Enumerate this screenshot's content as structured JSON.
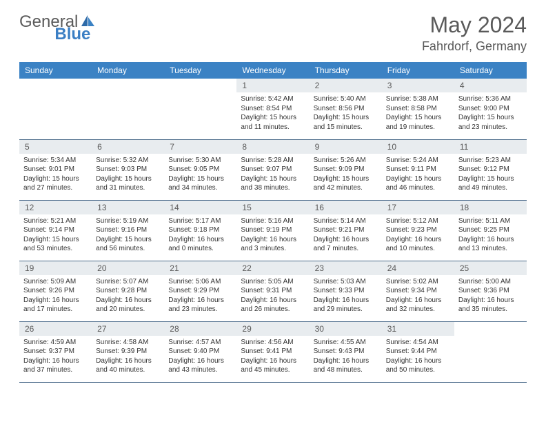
{
  "brand": {
    "part1": "General",
    "part2": "Blue"
  },
  "title": "May 2024",
  "location": "Fahrdorf, Germany",
  "colors": {
    "header_bg": "#3b82c4",
    "header_text": "#ffffff",
    "daynum_bg": "#e8ecef",
    "border": "#4a6a8a",
    "text": "#333333",
    "title_text": "#5a5a5a"
  },
  "weekdays": [
    "Sunday",
    "Monday",
    "Tuesday",
    "Wednesday",
    "Thursday",
    "Friday",
    "Saturday"
  ],
  "weeks": [
    [
      null,
      null,
      null,
      {
        "n": "1",
        "sr": "5:42 AM",
        "ss": "8:54 PM",
        "dl": "15 hours and 11 minutes."
      },
      {
        "n": "2",
        "sr": "5:40 AM",
        "ss": "8:56 PM",
        "dl": "15 hours and 15 minutes."
      },
      {
        "n": "3",
        "sr": "5:38 AM",
        "ss": "8:58 PM",
        "dl": "15 hours and 19 minutes."
      },
      {
        "n": "4",
        "sr": "5:36 AM",
        "ss": "9:00 PM",
        "dl": "15 hours and 23 minutes."
      }
    ],
    [
      {
        "n": "5",
        "sr": "5:34 AM",
        "ss": "9:01 PM",
        "dl": "15 hours and 27 minutes."
      },
      {
        "n": "6",
        "sr": "5:32 AM",
        "ss": "9:03 PM",
        "dl": "15 hours and 31 minutes."
      },
      {
        "n": "7",
        "sr": "5:30 AM",
        "ss": "9:05 PM",
        "dl": "15 hours and 34 minutes."
      },
      {
        "n": "8",
        "sr": "5:28 AM",
        "ss": "9:07 PM",
        "dl": "15 hours and 38 minutes."
      },
      {
        "n": "9",
        "sr": "5:26 AM",
        "ss": "9:09 PM",
        "dl": "15 hours and 42 minutes."
      },
      {
        "n": "10",
        "sr": "5:24 AM",
        "ss": "9:11 PM",
        "dl": "15 hours and 46 minutes."
      },
      {
        "n": "11",
        "sr": "5:23 AM",
        "ss": "9:12 PM",
        "dl": "15 hours and 49 minutes."
      }
    ],
    [
      {
        "n": "12",
        "sr": "5:21 AM",
        "ss": "9:14 PM",
        "dl": "15 hours and 53 minutes."
      },
      {
        "n": "13",
        "sr": "5:19 AM",
        "ss": "9:16 PM",
        "dl": "15 hours and 56 minutes."
      },
      {
        "n": "14",
        "sr": "5:17 AM",
        "ss": "9:18 PM",
        "dl": "16 hours and 0 minutes."
      },
      {
        "n": "15",
        "sr": "5:16 AM",
        "ss": "9:19 PM",
        "dl": "16 hours and 3 minutes."
      },
      {
        "n": "16",
        "sr": "5:14 AM",
        "ss": "9:21 PM",
        "dl": "16 hours and 7 minutes."
      },
      {
        "n": "17",
        "sr": "5:12 AM",
        "ss": "9:23 PM",
        "dl": "16 hours and 10 minutes."
      },
      {
        "n": "18",
        "sr": "5:11 AM",
        "ss": "9:25 PM",
        "dl": "16 hours and 13 minutes."
      }
    ],
    [
      {
        "n": "19",
        "sr": "5:09 AM",
        "ss": "9:26 PM",
        "dl": "16 hours and 17 minutes."
      },
      {
        "n": "20",
        "sr": "5:07 AM",
        "ss": "9:28 PM",
        "dl": "16 hours and 20 minutes."
      },
      {
        "n": "21",
        "sr": "5:06 AM",
        "ss": "9:29 PM",
        "dl": "16 hours and 23 minutes."
      },
      {
        "n": "22",
        "sr": "5:05 AM",
        "ss": "9:31 PM",
        "dl": "16 hours and 26 minutes."
      },
      {
        "n": "23",
        "sr": "5:03 AM",
        "ss": "9:33 PM",
        "dl": "16 hours and 29 minutes."
      },
      {
        "n": "24",
        "sr": "5:02 AM",
        "ss": "9:34 PM",
        "dl": "16 hours and 32 minutes."
      },
      {
        "n": "25",
        "sr": "5:00 AM",
        "ss": "9:36 PM",
        "dl": "16 hours and 35 minutes."
      }
    ],
    [
      {
        "n": "26",
        "sr": "4:59 AM",
        "ss": "9:37 PM",
        "dl": "16 hours and 37 minutes."
      },
      {
        "n": "27",
        "sr": "4:58 AM",
        "ss": "9:39 PM",
        "dl": "16 hours and 40 minutes."
      },
      {
        "n": "28",
        "sr": "4:57 AM",
        "ss": "9:40 PM",
        "dl": "16 hours and 43 minutes."
      },
      {
        "n": "29",
        "sr": "4:56 AM",
        "ss": "9:41 PM",
        "dl": "16 hours and 45 minutes."
      },
      {
        "n": "30",
        "sr": "4:55 AM",
        "ss": "9:43 PM",
        "dl": "16 hours and 48 minutes."
      },
      {
        "n": "31",
        "sr": "4:54 AM",
        "ss": "9:44 PM",
        "dl": "16 hours and 50 minutes."
      },
      null
    ]
  ],
  "labels": {
    "sunrise": "Sunrise:",
    "sunset": "Sunset:",
    "daylight": "Daylight:"
  }
}
